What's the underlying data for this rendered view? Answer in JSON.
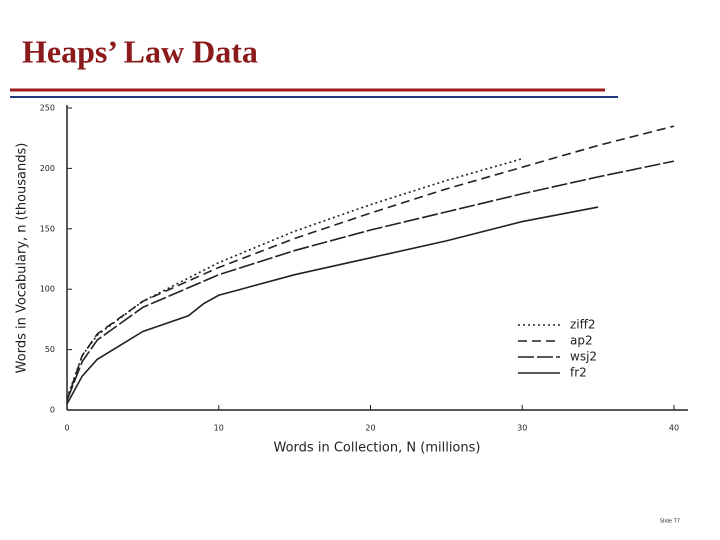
{
  "chart_data": {
    "type": "line",
    "title": "Heaps’ Law Data",
    "x_label": "Words in Collection, N (millions)",
    "y_label": "Words in Vocabulary, n (thousands)",
    "xlim": [
      0,
      40
    ],
    "xticks": [
      0,
      10,
      20,
      30,
      40
    ],
    "ylim": [
      0,
      250
    ],
    "yticks": [
      0,
      50,
      100,
      150,
      200,
      250
    ],
    "legend": "lower right",
    "series": [
      {
        "name": "ziff2",
        "color": "#222222",
        "dash": "2 3",
        "x": [
          0,
          1,
          2,
          5,
          10,
          15,
          20,
          25,
          30
        ],
        "values": [
          10,
          45,
          62,
          90,
          122,
          148,
          170,
          190,
          208
        ]
      },
      {
        "name": "ap2",
        "color": "#222222",
        "dash": "9 5",
        "x": [
          0,
          1,
          2,
          5,
          10,
          15,
          20,
          25,
          30,
          35,
          40
        ],
        "values": [
          8,
          45,
          63,
          90,
          118,
          142,
          163,
          183,
          201,
          219,
          235
        ]
      },
      {
        "name": "wsj2",
        "color": "#222222",
        "dash": "16 3",
        "x": [
          0,
          1,
          2,
          5,
          10,
          15,
          20,
          25,
          30,
          35,
          40
        ],
        "values": [
          8,
          40,
          58,
          85,
          112,
          132,
          149,
          164,
          179,
          193,
          206
        ]
      },
      {
        "name": "fr2",
        "color": "#222222",
        "dash": "none",
        "x": [
          0,
          1,
          2,
          5,
          8,
          9,
          10,
          15,
          20,
          25,
          30,
          35
        ],
        "values": [
          5,
          28,
          42,
          65,
          78,
          88,
          95,
          112,
          126,
          140,
          156,
          168
        ]
      }
    ]
  },
  "footer": {
    "slide": "Slide 77"
  }
}
